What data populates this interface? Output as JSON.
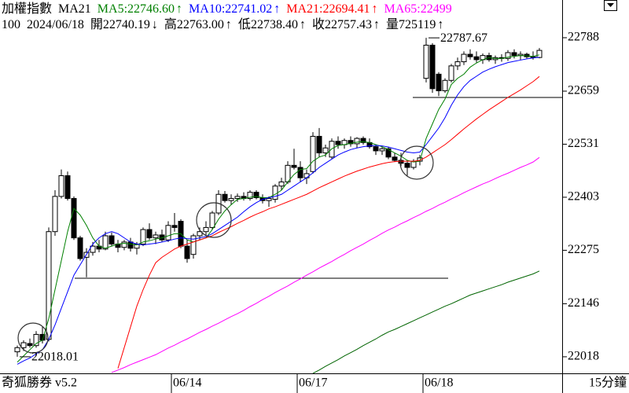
{
  "chart_data": {
    "type": "candlestick",
    "title": "加權指數",
    "indicator": "MA21",
    "separator": ":",
    "quote": {
      "code": "100",
      "date": "2024/06/18",
      "items": [
        {
          "label": "開",
          "value": 22740.19,
          "arrow": "↓"
        },
        {
          "label": "高",
          "value": 22763,
          "value_label": "22763.00",
          "arrow": "↑"
        },
        {
          "label": "低",
          "value": 22738.4,
          "value_label": "22738.40",
          "arrow": "↑"
        },
        {
          "label": "收",
          "value": 22757.43,
          "arrow": "↑"
        }
      ],
      "volume_label": "量",
      "volume": 725119,
      "volume_arrow": "↑"
    },
    "footer_left": "奇狐勝券 v5.2",
    "footer_right": "15分鐘",
    "ylim": [
      21978,
      22879
    ],
    "yticks": [
      22018,
      22146,
      22275,
      22403,
      22531,
      22659,
      22788
    ],
    "categories": [
      null,
      null,
      null,
      null,
      null,
      null,
      null,
      null,
      null,
      null,
      null,
      null,
      null,
      null,
      null,
      null,
      null,
      null,
      null,
      null,
      null,
      null,
      null,
      null,
      null,
      "06/14",
      null,
      null,
      null,
      null,
      null,
      null,
      null,
      null,
      null,
      null,
      null,
      null,
      null,
      null,
      null,
      null,
      null,
      null,
      null,
      "06/17",
      null,
      null,
      null,
      null,
      null,
      null,
      null,
      null,
      null,
      null,
      null,
      null,
      null,
      null,
      null,
      null,
      null,
      null,
      null,
      "06/18",
      null,
      null,
      null,
      null,
      null,
      null,
      null,
      null,
      null,
      null,
      null,
      null,
      null,
      null,
      null,
      null,
      null,
      null
    ],
    "ohlc": {
      "up_color": "#ffffff",
      "down_color": "#000000",
      "open": [
        22030,
        22040,
        22050,
        22045,
        22072,
        22060,
        22320,
        22405,
        22455,
        22400,
        22305,
        22258,
        22270,
        22285,
        22278,
        22310,
        22290,
        22282,
        22295,
        22280,
        22290,
        22325,
        22305,
        22312,
        22300,
        22335,
        22345,
        22285,
        22265,
        22310,
        22320,
        22330,
        22365,
        22410,
        22395,
        22400,
        22405,
        22400,
        22415,
        22402,
        22395,
        22398,
        22430,
        22440,
        22480,
        22475,
        22450,
        22465,
        22550,
        22510,
        22500,
        22538,
        22530,
        22540,
        22532,
        22545,
        22535,
        22525,
        22515,
        22520,
        22500,
        22492,
        22485,
        22475,
        22490,
        22690,
        22770,
        22700,
        22660,
        22685,
        22720,
        22730,
        22748,
        22742,
        22735,
        22745,
        22735,
        22740,
        22738,
        22752,
        22745,
        22748,
        22742,
        22740.19
      ],
      "high": [
        22045,
        22058,
        22062,
        22080,
        22090,
        22330,
        22420,
        22470,
        22465,
        22405,
        22310,
        22280,
        22295,
        22300,
        22320,
        22318,
        22300,
        22300,
        22305,
        22295,
        22330,
        22340,
        22320,
        22325,
        22345,
        22365,
        22350,
        22300,
        22315,
        22330,
        22345,
        22370,
        22420,
        22418,
        22410,
        22412,
        22415,
        22420,
        22420,
        22410,
        22405,
        22435,
        22450,
        22490,
        22520,
        22490,
        22470,
        22560,
        22570,
        22530,
        22545,
        22550,
        22545,
        22550,
        22548,
        22550,
        22545,
        22530,
        22525,
        22525,
        22510,
        22510,
        22492,
        22495,
        22505,
        22787.67,
        22775,
        22705,
        22690,
        22725,
        22740,
        22755,
        22760,
        22755,
        22750,
        22752,
        22745,
        22748,
        22758,
        22760,
        22755,
        22752,
        22755,
        22763
      ],
      "low": [
        22018.01,
        22032,
        22040,
        22040,
        22050,
        22055,
        22310,
        22400,
        22395,
        22300,
        22250,
        22210,
        22262,
        22270,
        22275,
        22285,
        22270,
        22275,
        22272,
        22265,
        22285,
        22300,
        22290,
        22295,
        22295,
        22320,
        22280,
        22245,
        22255,
        22300,
        22310,
        22325,
        22360,
        22390,
        22385,
        22392,
        22395,
        22395,
        22398,
        22388,
        22380,
        22390,
        22420,
        22435,
        22470,
        22440,
        22435,
        22460,
        22500,
        22500,
        22495,
        22520,
        22520,
        22525,
        22522,
        22530,
        22520,
        22505,
        22505,
        22495,
        22488,
        22478,
        22455,
        22470,
        22480,
        22680,
        22655,
        22647,
        22655,
        22680,
        22710,
        22722,
        22735,
        22728,
        22725,
        22730,
        22725,
        22730,
        22732,
        22738,
        22735,
        22738,
        22735,
        22738.4
      ],
      "close": [
        22040,
        22052,
        22045,
        22072,
        22058,
        22320,
        22405,
        22455,
        22400,
        22305,
        22255,
        22270,
        22285,
        22278,
        22310,
        22290,
        22282,
        22295,
        22280,
        22290,
        22325,
        22305,
        22312,
        22300,
        22335,
        22330,
        22285,
        22255,
        22310,
        22320,
        22330,
        22365,
        22410,
        22395,
        22400,
        22405,
        22400,
        22415,
        22402,
        22395,
        22400,
        22430,
        22440,
        22480,
        22475,
        22450,
        22460,
        22550,
        22510,
        22522,
        22538,
        22530,
        22540,
        22532,
        22545,
        22535,
        22525,
        22515,
        22520,
        22500,
        22492,
        22485,
        22475,
        22490,
        22498,
        22770,
        22665,
        22660,
        22685,
        22720,
        22730,
        22748,
        22742,
        22735,
        22745,
        22735,
        22740,
        22738,
        22752,
        22745,
        22748,
        22742,
        22740,
        22757.43
      ]
    },
    "series": [
      {
        "name": "MA5",
        "color": "#008000",
        "value": 22746.6,
        "value_label": "22746.60",
        "arrow": "↑",
        "values": [
          22005,
          22020,
          22035,
          22050,
          22058,
          22110,
          22180,
          22250,
          22320,
          22376,
          22360,
          22335,
          22305,
          22285,
          22280,
          22285,
          22290,
          22292,
          22290,
          22288,
          22295,
          22298,
          22302,
          22305,
          22310,
          22315,
          22315,
          22300,
          22295,
          22300,
          22305,
          22325,
          22350,
          22370,
          22385,
          22398,
          22400,
          22403,
          22405,
          22402,
          22402,
          22410,
          22420,
          22440,
          22458,
          22470,
          22472,
          22490,
          22500,
          22505,
          22520,
          22528,
          22530,
          22533,
          22536,
          22537,
          22535,
          22530,
          22525,
          22518,
          22510,
          22502,
          22492,
          22488,
          22490,
          22545,
          22580,
          22615,
          22640,
          22675,
          22690,
          22700,
          22717,
          22727,
          22735,
          22740,
          22738,
          22738,
          22741,
          22743,
          22745,
          22744,
          22743,
          22746.6
        ]
      },
      {
        "name": "MA10",
        "color": "#0000ff",
        "value": 22741.02,
        "arrow": "↑",
        "values": [
          22000,
          22008,
          22015,
          22025,
          22035,
          22060,
          22095,
          22135,
          22175,
          22215,
          22240,
          22265,
          22290,
          22305,
          22315,
          22320,
          22315,
          22305,
          22295,
          22290,
          22288,
          22290,
          22292,
          22295,
          22298,
          22302,
          22305,
          22303,
          22302,
          22305,
          22308,
          22315,
          22325,
          22335,
          22345,
          22355,
          22368,
          22380,
          22390,
          22398,
          22402,
          22405,
          22410,
          22420,
          22430,
          22440,
          22450,
          22462,
          22475,
          22485,
          22495,
          22505,
          22512,
          22518,
          22522,
          22525,
          22527,
          22528,
          22527,
          22524,
          22520,
          22516,
          22512,
          22510,
          22512,
          22530,
          22550,
          22570,
          22595,
          22625,
          22650,
          22670,
          22685,
          22695,
          22705,
          22712,
          22718,
          22723,
          22728,
          22731,
          22734,
          22737,
          22739,
          22741.02
        ]
      },
      {
        "name": "MA21",
        "color": "#ff0000",
        "value": 22694.41,
        "arrow": "↑",
        "values": [
          null,
          null,
          null,
          null,
          null,
          null,
          null,
          null,
          null,
          null,
          null,
          null,
          null,
          null,
          null,
          null,
          21990,
          22040,
          22090,
          22140,
          22180,
          22215,
          22245,
          22258,
          22268,
          22278,
          22285,
          22290,
          22295,
          22300,
          22305,
          22310,
          22318,
          22325,
          22332,
          22340,
          22347,
          22355,
          22362,
          22368,
          22375,
          22380,
          22386,
          22392,
          22398,
          22404,
          22410,
          22418,
          22426,
          22433,
          22440,
          22447,
          22454,
          22460,
          22466,
          22471,
          22476,
          22480,
          22484,
          22487,
          22489,
          22490,
          22490,
          22490,
          22492,
          22500,
          22510,
          22520,
          22530,
          22542,
          22555,
          22568,
          22580,
          22592,
          22603,
          22614,
          22624,
          22634,
          22644,
          22653,
          22662,
          22672,
          22682,
          22694.41
        ]
      },
      {
        "name": "MA65",
        "color": "#ff00ff",
        "value": 22499,
        "values": [
          null,
          null,
          null,
          null,
          null,
          null,
          null,
          null,
          null,
          null,
          null,
          null,
          null,
          null,
          null,
          21980,
          21986,
          21992,
          21999,
          22005,
          22011,
          22017,
          22023,
          22031,
          22039,
          22046,
          22054,
          22061,
          22069,
          22077,
          22084,
          22092,
          22099,
          22107,
          22115,
          22122,
          22130,
          22139,
          22147,
          22156,
          22164,
          22173,
          22181,
          22189,
          22198,
          22206,
          22215,
          22223,
          22232,
          22240,
          22248,
          22257,
          22265,
          22274,
          22282,
          22290,
          22299,
          22307,
          22316,
          22324,
          22331,
          22339,
          22346,
          22354,
          22361,
          22369,
          22376,
          22384,
          22391,
          22399,
          22406,
          22414,
          22421,
          22428,
          22435,
          22441,
          22448,
          22455,
          22461,
          22468,
          22475,
          22481,
          22488,
          22499
        ]
      },
      {
        "color": "#006400",
        "values": [
          null,
          null,
          null,
          null,
          null,
          null,
          null,
          null,
          null,
          null,
          null,
          null,
          null,
          null,
          null,
          null,
          null,
          null,
          null,
          null,
          null,
          null,
          null,
          null,
          null,
          null,
          null,
          null,
          null,
          null,
          null,
          null,
          null,
          null,
          null,
          null,
          null,
          null,
          null,
          null,
          null,
          null,
          null,
          null,
          null,
          null,
          null,
          21978,
          21986,
          21995,
          22003,
          22011,
          22020,
          22028,
          22036,
          22045,
          22053,
          22061,
          22070,
          22078,
          22084,
          22091,
          22098,
          22105,
          22112,
          22119,
          22126,
          22133,
          22140,
          22146,
          22153,
          22160,
          22167,
          22172,
          22177,
          22182,
          22187,
          22192,
          22198,
          22203,
          22208,
          22213,
          22218,
          22225
        ]
      }
    ]
  }
}
